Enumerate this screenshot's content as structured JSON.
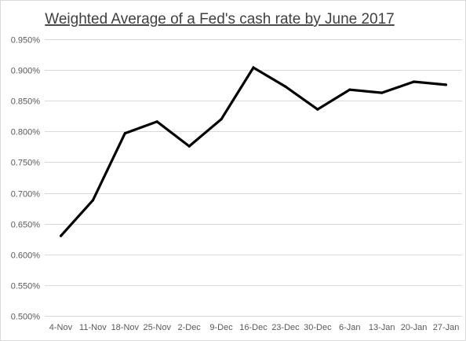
{
  "chart_data": {
    "type": "line",
    "title": "Weighted Average of a Fed's cash rate by June 2017",
    "xlabel": "",
    "ylabel": "",
    "categories": [
      "4-Nov",
      "11-Nov",
      "18-Nov",
      "25-Nov",
      "2-Dec",
      "9-Dec",
      "16-Dec",
      "23-Dec",
      "30-Dec",
      "6-Jan",
      "13-Jan",
      "20-Jan",
      "27-Jan"
    ],
    "series": [
      {
        "values": [
          0.63,
          0.688,
          0.797,
          0.816,
          0.776,
          0.82,
          0.904,
          0.873,
          0.836,
          0.868,
          0.863,
          0.881,
          0.876
        ],
        "color": "#000000"
      }
    ],
    "ylim": [
      0.5,
      0.95
    ],
    "yticks": [
      0.5,
      0.55,
      0.6,
      0.65,
      0.7,
      0.75,
      0.8,
      0.85,
      0.9,
      0.95
    ],
    "ytick_labels": [
      "0.500%",
      "0.550%",
      "0.600%",
      "0.650%",
      "0.700%",
      "0.750%",
      "0.800%",
      "0.850%",
      "0.900%",
      "0.950%"
    ],
    "grid": true,
    "legend": "none"
  }
}
